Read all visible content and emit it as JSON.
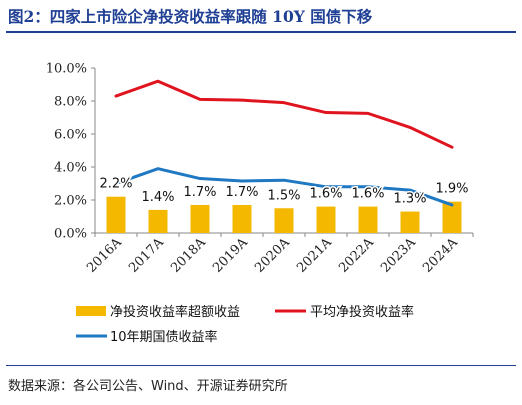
{
  "figure": {
    "title": "图2：四家上市险企净投资收益率跟随 10Y 国债下移",
    "source": "数据来源：各公司公告、Wind、开源证券研究所"
  },
  "chart_data": {
    "type": "bar",
    "categories": [
      "2016A",
      "2017A",
      "2018A",
      "2019A",
      "2020A",
      "2021A",
      "2022A",
      "2023A",
      "2024A"
    ],
    "ylim": [
      0,
      10
    ],
    "yticks": [
      0,
      2,
      4,
      6,
      8,
      10
    ],
    "ytick_labels": [
      "0.0%",
      "2.0%",
      "4.0%",
      "6.0%",
      "8.0%",
      "10.0%"
    ],
    "grid": false,
    "legend_position": "bottom",
    "series": [
      {
        "name": "净投资收益率超额收益",
        "type": "bar",
        "color": "#f5b800",
        "values": [
          2.2,
          1.4,
          1.7,
          1.7,
          1.5,
          1.6,
          1.6,
          1.3,
          1.9
        ],
        "labels": [
          "2.2%",
          "1.4%",
          "1.7%",
          "1.7%",
          "1.5%",
          "1.6%",
          "1.6%",
          "1.3%",
          "1.9%"
        ]
      },
      {
        "name": "平均净投资收益率",
        "type": "line",
        "color": "#e0141e",
        "values": [
          8.3,
          9.2,
          8.1,
          8.05,
          7.9,
          7.3,
          7.25,
          6.4,
          5.2
        ]
      },
      {
        "name": "10年期国债收益率",
        "type": "line",
        "color": "#1f78c2",
        "values": [
          3.0,
          3.9,
          3.3,
          3.15,
          3.2,
          2.8,
          2.8,
          2.6,
          1.7
        ]
      }
    ]
  }
}
